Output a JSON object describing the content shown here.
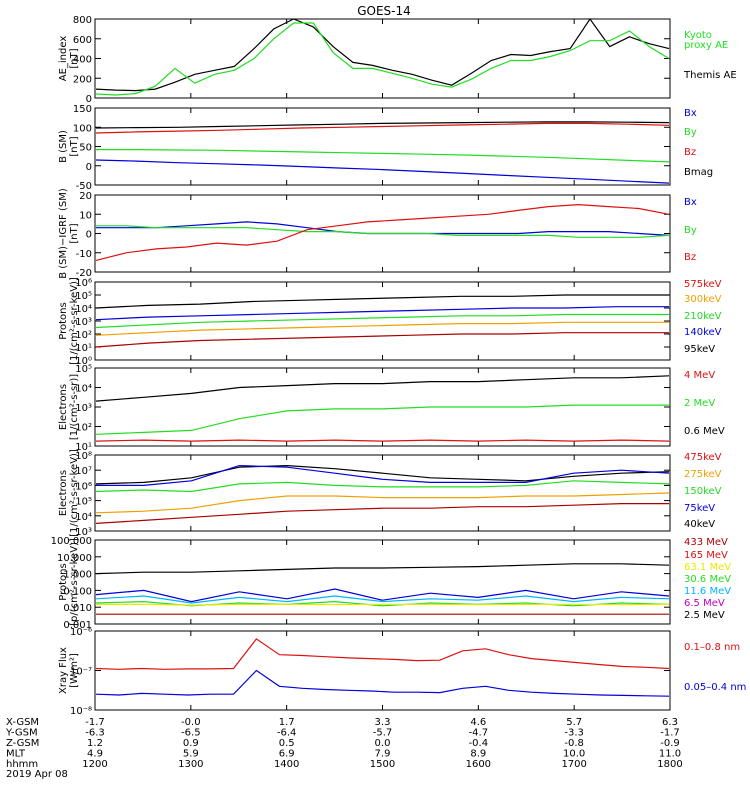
{
  "title": "GOES-14",
  "colors": {
    "black": "#000000",
    "blue": "#0000dd",
    "green": "#22dd22",
    "red": "#dd1111",
    "orange": "#f0a000",
    "cyan": "#00b4ff",
    "yellow": "#e8e800",
    "purple": "#c000c0",
    "darkred": "#aa0000"
  },
  "ephemeris": {
    "labels": [
      "X-GSM",
      "Y-GSM",
      "Z-GSM",
      "MLT",
      "hhmm",
      "2019 Apr 08"
    ],
    "columns": [
      {
        "x": "-1.7",
        "y": "-6.3",
        "z": "1.2",
        "mlt": "4.9",
        "hhmm": "1200"
      },
      {
        "x": "-0.0",
        "y": "-6.5",
        "z": "0.9",
        "mlt": "5.9",
        "hhmm": "1300"
      },
      {
        "x": "1.7",
        "y": "-6.4",
        "z": "0.5",
        "mlt": "6.9",
        "hhmm": "1400"
      },
      {
        "x": "3.3",
        "y": "-5.7",
        "z": "0.0",
        "mlt": "7.9",
        "hhmm": "1500"
      },
      {
        "x": "4.6",
        "y": "-4.7",
        "z": "-0.4",
        "mlt": "8.9",
        "hhmm": "1600"
      },
      {
        "x": "5.7",
        "y": "-3.3",
        "z": "-0.8",
        "mlt": "10.0",
        "hhmm": "1700"
      },
      {
        "x": "6.3",
        "y": "-1.7",
        "z": "-0.9",
        "mlt": "11.0",
        "hhmm": "1800"
      }
    ]
  },
  "chart_data": [
    {
      "type": "line",
      "name": "ae",
      "ylabel": [
        "AE_index",
        "[nT]"
      ],
      "ylim": [
        0,
        800
      ],
      "ticks": [
        "0",
        "200",
        "400",
        "600",
        "800"
      ],
      "legend": [
        {
          "text": "Kyoto",
          "color": "green"
        },
        {
          "text": "proxy AE",
          "color": "green"
        },
        {
          "text": "Themis AE",
          "color": "black"
        }
      ],
      "series": [
        {
          "color": "black",
          "values": [
            90,
            80,
            75,
            90,
            160,
            240,
            280,
            320,
            500,
            700,
            800,
            720,
            520,
            360,
            330,
            280,
            240,
            180,
            130,
            250,
            380,
            440,
            430,
            470,
            500,
            800,
            520,
            620,
            550,
            500
          ]
        },
        {
          "color": "green",
          "values": [
            40,
            30,
            45,
            120,
            300,
            150,
            240,
            280,
            400,
            600,
            760,
            760,
            460,
            300,
            300,
            250,
            200,
            140,
            110,
            190,
            300,
            380,
            380,
            420,
            480,
            580,
            580,
            680,
            520,
            400
          ]
        }
      ]
    },
    {
      "type": "line",
      "name": "b-sm",
      "ylabel": [
        "B (SM)",
        "[nT]"
      ],
      "ylim": [
        -50,
        150
      ],
      "ticks": [
        "-50",
        "0",
        "50",
        "100",
        "150"
      ],
      "legend": [
        {
          "text": "Bx",
          "color": "blue"
        },
        {
          "text": "By",
          "color": "green"
        },
        {
          "text": "Bz",
          "color": "red"
        },
        {
          "text": "Bmag",
          "color": "black"
        }
      ],
      "series": [
        {
          "color": "blue",
          "values": [
            15,
            12,
            8,
            5,
            2,
            -2,
            -6,
            -10,
            -15,
            -20,
            -25,
            -30,
            -35,
            -40,
            -45
          ]
        },
        {
          "color": "green",
          "values": [
            42,
            42,
            41,
            40,
            38,
            36,
            34,
            32,
            30,
            28,
            25,
            22,
            18,
            14,
            10
          ]
        },
        {
          "color": "red",
          "values": [
            85,
            88,
            90,
            92,
            95,
            98,
            100,
            102,
            104,
            106,
            108,
            110,
            110,
            108,
            105
          ]
        },
        {
          "color": "black",
          "values": [
            98,
            99,
            100,
            102,
            104,
            106,
            108,
            110,
            111,
            112,
            113,
            114,
            114,
            113,
            112
          ]
        }
      ]
    },
    {
      "type": "line",
      "name": "b-igrf",
      "ylabel": [
        "B (SM)−IGRF (SM)",
        "[nT]"
      ],
      "ylim": [
        -20,
        20
      ],
      "ticks": [
        "-20",
        "-10",
        "0",
        "10",
        "20"
      ],
      "legend": [
        {
          "text": "Bx",
          "color": "blue"
        },
        {
          "text": "By",
          "color": "green"
        },
        {
          "text": "Bz",
          "color": "red"
        }
      ],
      "series": [
        {
          "color": "blue",
          "values": [
            3,
            3,
            3,
            4,
            5,
            6,
            5,
            3,
            1,
            0,
            0,
            0,
            0,
            0,
            0,
            1,
            1,
            1,
            0,
            -1
          ]
        },
        {
          "color": "green",
          "values": [
            4,
            4,
            3,
            3,
            3,
            3,
            2,
            1,
            1,
            0,
            0,
            0,
            -1,
            -1,
            -1,
            -1,
            -2,
            -2,
            -2,
            -1
          ]
        },
        {
          "color": "red",
          "values": [
            -14,
            -10,
            -8,
            -7,
            -5,
            -6,
            -4,
            2,
            4,
            6,
            7,
            8,
            9,
            10,
            12,
            14,
            15,
            14,
            13,
            10
          ]
        }
      ]
    },
    {
      "type": "line",
      "name": "protons-mageds",
      "ylabel": [
        "Protons",
        "[1/(cm²-s-sr-keV)]"
      ],
      "ylim": [
        0,
        6
      ],
      "log": true,
      "ticks": [
        "10⁰",
        "10¹",
        "10²",
        "10³",
        "10⁴",
        "10⁵",
        "10⁶"
      ],
      "legend": [
        {
          "text": "575keV",
          "color": "red"
        },
        {
          "text": "300keV",
          "color": "orange"
        },
        {
          "text": "210keV",
          "color": "green"
        },
        {
          "text": "140keV",
          "color": "blue"
        },
        {
          "text": "95keV",
          "color": "black"
        }
      ],
      "series": [
        {
          "color": "black",
          "values": [
            4.0,
            4.2,
            4.3,
            4.5,
            4.6,
            4.7,
            4.8,
            4.9,
            4.9,
            5.0,
            5.0,
            5.0
          ]
        },
        {
          "color": "blue",
          "values": [
            3.1,
            3.3,
            3.4,
            3.5,
            3.6,
            3.7,
            3.8,
            3.9,
            4.0,
            4.0,
            4.1,
            4.1
          ]
        },
        {
          "color": "green",
          "values": [
            2.5,
            2.7,
            2.9,
            3.0,
            3.1,
            3.2,
            3.3,
            3.4,
            3.4,
            3.5,
            3.5,
            3.5
          ]
        },
        {
          "color": "orange",
          "values": [
            1.9,
            2.1,
            2.3,
            2.4,
            2.5,
            2.6,
            2.7,
            2.8,
            2.8,
            2.9,
            2.9,
            2.9
          ]
        },
        {
          "color": "darkred",
          "values": [
            1.0,
            1.3,
            1.5,
            1.6,
            1.7,
            1.8,
            1.9,
            2.0,
            2.0,
            2.1,
            2.1,
            2.1
          ]
        }
      ]
    },
    {
      "type": "line",
      "name": "electrons-epead",
      "ylabel": [
        "Electrons",
        "[1/(cm²-s-sr)]"
      ],
      "ylim": [
        1,
        5
      ],
      "log": true,
      "ticks": [
        "10¹",
        "10²",
        "10³",
        "10⁴",
        "10⁵"
      ],
      "legend": [
        {
          "text": "4 MeV",
          "color": "red"
        },
        {
          "text": "2 MeV",
          "color": "green"
        },
        {
          "text": "0.6 MeV",
          "color": "black"
        }
      ],
      "series": [
        {
          "color": "black",
          "values": [
            3.3,
            3.5,
            3.7,
            4.0,
            4.1,
            4.2,
            4.2,
            4.3,
            4.3,
            4.4,
            4.5,
            4.5,
            4.6
          ]
        },
        {
          "color": "green",
          "values": [
            1.6,
            1.7,
            1.8,
            2.4,
            2.8,
            2.9,
            2.9,
            3.0,
            3.0,
            3.0,
            3.1,
            3.1,
            3.1
          ]
        },
        {
          "color": "red",
          "values": [
            1.25,
            1.3,
            1.25,
            1.3,
            1.25,
            1.3,
            1.25,
            1.3,
            1.25,
            1.3,
            1.25,
            1.3,
            1.25
          ]
        }
      ]
    },
    {
      "type": "line",
      "name": "electrons-maged",
      "ylabel": [
        "Electrons",
        "[1/(cm²-s-sr-keV)]"
      ],
      "ylim": [
        3,
        8
      ],
      "log": true,
      "ticks": [
        "10³",
        "10⁴",
        "10⁵",
        "10⁶",
        "10⁷",
        "10⁸"
      ],
      "legend": [
        {
          "text": "475keV",
          "color": "red"
        },
        {
          "text": "275keV",
          "color": "orange"
        },
        {
          "text": "150keV",
          "color": "green"
        },
        {
          "text": "75keV",
          "color": "blue"
        },
        {
          "text": "40keV",
          "color": "black"
        }
      ],
      "series": [
        {
          "color": "black",
          "values": [
            6.1,
            6.2,
            6.5,
            7.2,
            7.3,
            7.1,
            6.8,
            6.5,
            6.4,
            6.3,
            6.6,
            6.8,
            6.9
          ]
        },
        {
          "color": "blue",
          "values": [
            6.0,
            6.0,
            6.3,
            7.3,
            7.2,
            6.8,
            6.4,
            6.2,
            6.2,
            6.2,
            6.8,
            7.0,
            6.8
          ]
        },
        {
          "color": "green",
          "values": [
            5.6,
            5.7,
            5.6,
            6.1,
            6.2,
            6.0,
            5.9,
            5.9,
            5.9,
            6.0,
            6.3,
            6.2,
            6.1
          ]
        },
        {
          "color": "orange",
          "values": [
            4.2,
            4.3,
            4.5,
            5.0,
            5.3,
            5.3,
            5.2,
            5.2,
            5.2,
            5.3,
            5.3,
            5.4,
            5.5
          ]
        },
        {
          "color": "darkred",
          "values": [
            3.5,
            3.7,
            3.9,
            4.1,
            4.3,
            4.4,
            4.5,
            4.5,
            4.6,
            4.6,
            4.7,
            4.8,
            4.8
          ]
        }
      ]
    },
    {
      "type": "line",
      "name": "protons-epead",
      "ylabel": [
        "Protons",
        "[p/(cm²-s-sr-keV)]"
      ],
      "ylim": [
        -3,
        3
      ],
      "log": true,
      "ticks": [
        "0.001",
        "0.010",
        "0.100",
        "1.000",
        "10.000",
        "100.000"
      ],
      "legend": [
        {
          "text": "433 MeV",
          "color": "darkred"
        },
        {
          "text": "165 MeV",
          "color": "red"
        },
        {
          "text": "63.1 MeV",
          "color": "yellow"
        },
        {
          "text": "30.6 MeV",
          "color": "green"
        },
        {
          "text": "11.6 MeV",
          "color": "cyan"
        },
        {
          "text": "6.5 MeV",
          "color": "purple"
        },
        {
          "text": "2.5 MeV",
          "color": "black"
        }
      ],
      "series": [
        {
          "color": "black",
          "values": [
            0.6,
            0.7,
            0.7,
            0.8,
            0.9,
            1.0,
            1.0,
            1.05,
            1.1,
            1.2,
            1.3,
            1.3,
            1.2
          ]
        },
        {
          "color": "blue",
          "values": [
            -0.9,
            -0.6,
            -1.4,
            -0.7,
            -1.2,
            -0.5,
            -1.3,
            -0.8,
            -1.1,
            -0.6,
            -1.2,
            -0.7,
            -1.0
          ]
        },
        {
          "color": "cyan",
          "values": [
            -1.2,
            -1.0,
            -1.5,
            -1.1,
            -1.4,
            -1.0,
            -1.4,
            -1.2,
            -1.3,
            -1.0,
            -1.4,
            -1.1,
            -1.2
          ]
        },
        {
          "color": "green",
          "values": [
            -1.5,
            -1.4,
            -1.7,
            -1.5,
            -1.6,
            -1.4,
            -1.7,
            -1.5,
            -1.6,
            -1.5,
            -1.7,
            -1.5,
            -1.6
          ]
        },
        {
          "color": "yellow",
          "values": [
            -1.6,
            -1.6,
            -1.65,
            -1.6,
            -1.6,
            -1.62,
            -1.6,
            -1.6,
            -1.62,
            -1.6,
            -1.6,
            -1.62,
            -1.6
          ]
        },
        {
          "color": "darkred",
          "values": [
            -2.3,
            -2.3,
            -2.3,
            -2.3,
            -2.3,
            -2.3,
            -2.3,
            -2.3,
            -2.3,
            -2.3,
            -2.3,
            -2.3,
            -2.3
          ]
        }
      ]
    },
    {
      "type": "line",
      "name": "xray",
      "ylabel": [
        "Xray Flux",
        "[W/m²]"
      ],
      "ylim": [
        -8,
        -6
      ],
      "log": true,
      "ticks": [
        "10⁻⁸",
        "10⁻⁷",
        "10⁻⁶"
      ],
      "legend": [
        {
          "text": "0.1–0.8 nm",
          "color": "red"
        },
        {
          "text": "0.05–0.4 nm",
          "color": "blue"
        }
      ],
      "series": [
        {
          "color": "red",
          "values": [
            -6.95,
            -6.97,
            -6.95,
            -6.97,
            -6.96,
            -6.96,
            -6.95,
            -6.2,
            -6.6,
            -6.62,
            -6.65,
            -6.68,
            -6.7,
            -6.72,
            -6.75,
            -6.74,
            -6.5,
            -6.45,
            -6.6,
            -6.7,
            -6.75,
            -6.8,
            -6.85,
            -6.9,
            -6.92,
            -6.95
          ]
        },
        {
          "color": "blue",
          "values": [
            -7.6,
            -7.62,
            -7.58,
            -7.6,
            -7.62,
            -7.6,
            -7.6,
            -7.0,
            -7.4,
            -7.45,
            -7.48,
            -7.5,
            -7.52,
            -7.55,
            -7.55,
            -7.56,
            -7.45,
            -7.4,
            -7.5,
            -7.55,
            -7.58,
            -7.6,
            -7.62,
            -7.63,
            -7.64,
            -7.65
          ]
        }
      ]
    }
  ]
}
